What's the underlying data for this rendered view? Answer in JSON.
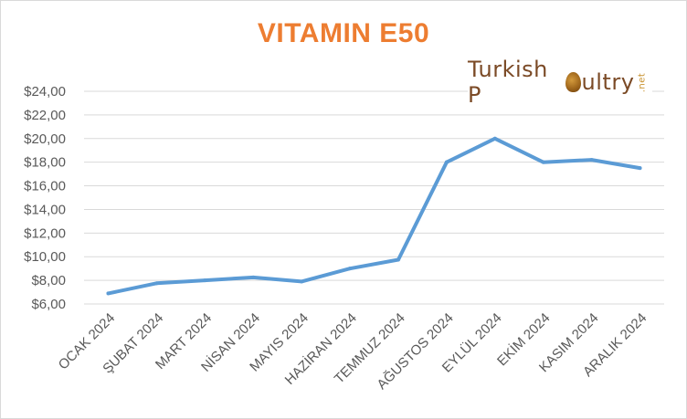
{
  "title": "VITAMIN E50",
  "colors": {
    "title": "#ed7d31",
    "line": "#5b9bd5",
    "grid": "#d9d9d9",
    "axis_text": "#595959",
    "logo_brown": "#7b4a26",
    "logo_gold": "#c8912e"
  },
  "logo": {
    "text_part1": "Turkish P",
    "text_part2": "ultry",
    "badge": ".net",
    "icon": "egg-icon"
  },
  "chart_data": {
    "type": "line",
    "title": "VITAMIN E50",
    "xlabel": "",
    "ylabel": "",
    "categories": [
      "OCAK 2024",
      "ŞUBAT 2024",
      "MART 2024",
      "NİSAN 2024",
      "MAYIS 2024",
      "HAZİRAN 2024",
      "TEMMUZ 2024",
      "AĞUSTOS 2024",
      "EYLÜL 2024",
      "EKİM 2024",
      "KASIM 2024",
      "ARALIK 2024"
    ],
    "series": [
      {
        "values": [
          6.9,
          7.75,
          8.0,
          8.25,
          7.9,
          9.0,
          9.75,
          18.0,
          20.0,
          18.0,
          18.2,
          17.5
        ]
      }
    ],
    "ylim": [
      6,
      24
    ],
    "ytick_labels": [
      "$6,00",
      "$8,00",
      "$10,00",
      "$12,00",
      "$14,00",
      "$16,00",
      "$18,00",
      "$20,00",
      "$22,00",
      "$24,00"
    ],
    "grid": true,
    "legend": "none"
  }
}
